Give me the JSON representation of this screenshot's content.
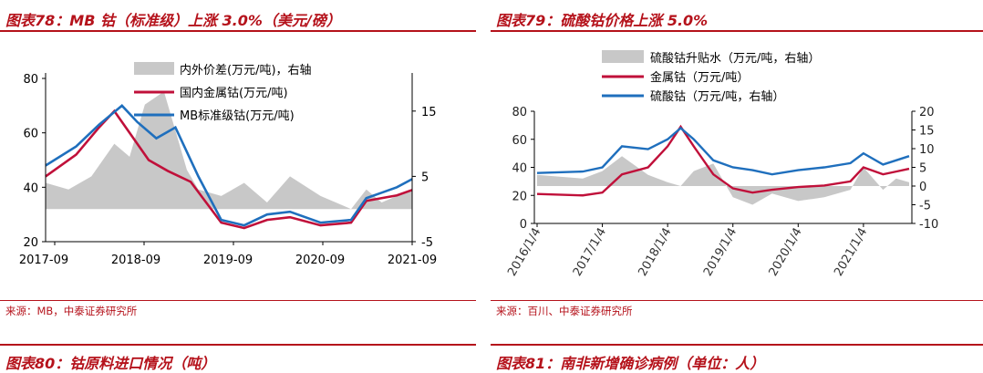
{
  "colors": {
    "accent": "#b5121b",
    "blue": "#1f6fbd",
    "red": "#c0103a",
    "gray": "#c8c8c8"
  },
  "left": {
    "title": "图表78：MB 钴（标准级）上涨 3.0%（美元/磅）",
    "source": "来源：MB，中泰证券研究所",
    "chart_data": {
      "type": "line",
      "ylim_left": [
        20,
        80
      ],
      "ylim_right": [
        -5,
        20
      ],
      "yticks_left": [
        "80",
        "60",
        "40",
        "20"
      ],
      "yticks_right": [
        "15",
        "5",
        "-5"
      ],
      "xticks": [
        "2017-09",
        "2018-09",
        "2019-09",
        "2020-09",
        "2021-09"
      ],
      "legend": [
        "内外价差(万元/吨)，右轴",
        "国内金属钴(万元/吨)",
        "MB标准级钴(万元/吨)"
      ],
      "series": [
        {
          "name": "MB标准级钴(万元/吨)",
          "axis": "left",
          "x": [
            0,
            0.4,
            0.7,
            1.0,
            1.2,
            1.45,
            1.7,
            2.0,
            2.3,
            2.6,
            2.9,
            3.2,
            3.6,
            4.0,
            4.2,
            4.4,
            4.6,
            4.8
          ],
          "y": [
            48,
            55,
            63,
            70,
            64,
            58,
            62,
            44,
            28,
            26,
            30,
            31,
            27,
            28,
            36,
            38,
            40,
            43
          ]
        },
        {
          "name": "国内金属钴(万元/吨)",
          "axis": "left",
          "x": [
            0,
            0.4,
            0.7,
            0.9,
            1.1,
            1.35,
            1.6,
            1.9,
            2.3,
            2.6,
            2.9,
            3.2,
            3.6,
            4.0,
            4.2,
            4.4,
            4.6,
            4.8
          ],
          "y": [
            44,
            52,
            62,
            68,
            60,
            50,
            46,
            42,
            27,
            25,
            28,
            29,
            26,
            27,
            35,
            36,
            37,
            39
          ]
        },
        {
          "name": "内外价差(万元/吨)，右轴",
          "axis": "right",
          "x": [
            0,
            0.3,
            0.6,
            0.9,
            1.1,
            1.3,
            1.55,
            1.7,
            1.85,
            2.0,
            2.3,
            2.6,
            2.9,
            3.2,
            3.6,
            4.0,
            4.2,
            4.4,
            4.6,
            4.8
          ],
          "y": [
            4,
            3,
            5,
            10,
            8,
            16,
            18,
            12,
            6,
            3,
            2,
            4,
            1,
            5,
            2,
            0,
            3,
            1,
            2,
            3
          ]
        }
      ]
    }
  },
  "right": {
    "title": "图表79：硫酸钴价格上涨 5.0%",
    "source": "来源：百川、中泰证券研究所",
    "chart_data": {
      "type": "line",
      "ylim_left": [
        0,
        80
      ],
      "ylim_right": [
        -10,
        20
      ],
      "yticks_left": [
        "80",
        "60",
        "40",
        "20",
        "0"
      ],
      "yticks_right": [
        "20",
        "15",
        "10",
        "5",
        "0",
        "-5",
        "-10"
      ],
      "xticks": [
        "2016/1/4",
        "2017/1/4",
        "2018/1/4",
        "2019/1/4",
        "2020/1/4",
        "2021/1/4"
      ],
      "legend": [
        "硫酸钴升贴水（万元/吨，右轴）",
        "金属钴（万元/吨）",
        "硫酸钴（万元/吨，右轴）"
      ],
      "series": [
        {
          "name": "硫酸钴（万元/吨，右轴）",
          "axis": "left",
          "x": [
            0,
            0.7,
            1.0,
            1.3,
            1.7,
            2.0,
            2.2,
            2.4,
            2.7,
            3.0,
            3.3,
            3.6,
            4.0,
            4.4,
            4.8,
            5.0,
            5.3,
            5.5,
            5.7
          ],
          "y": [
            36,
            37,
            40,
            55,
            53,
            60,
            68,
            60,
            45,
            40,
            38,
            35,
            38,
            40,
            43,
            50,
            42,
            45,
            48
          ]
        },
        {
          "name": "金属钴（万元/吨）",
          "axis": "left",
          "x": [
            0,
            0.7,
            1.0,
            1.3,
            1.7,
            2.0,
            2.2,
            2.4,
            2.7,
            3.0,
            3.3,
            3.6,
            4.0,
            4.4,
            4.8,
            5.0,
            5.3,
            5.5,
            5.7
          ],
          "y": [
            21,
            20,
            22,
            35,
            40,
            55,
            69,
            55,
            35,
            25,
            22,
            24,
            26,
            27,
            30,
            40,
            35,
            37,
            39
          ]
        },
        {
          "name": "硫酸钴升贴水（万元/吨，右轴）",
          "axis": "right",
          "x": [
            0,
            0.7,
            1.0,
            1.3,
            1.7,
            2.0,
            2.2,
            2.4,
            2.7,
            3.0,
            3.3,
            3.6,
            4.0,
            4.4,
            4.8,
            5.0,
            5.3,
            5.5,
            5.7
          ],
          "y": [
            3,
            2,
            4,
            8,
            3,
            1,
            0,
            4,
            6,
            -3,
            -5,
            -2,
            -4,
            -3,
            -1,
            5,
            -1,
            2,
            1
          ]
        }
      ]
    }
  },
  "bottom": {
    "left_title": "图表80：钴原料进口情况（吨）",
    "right_title": "图表81：南非新增确诊病例（单位：人）"
  }
}
